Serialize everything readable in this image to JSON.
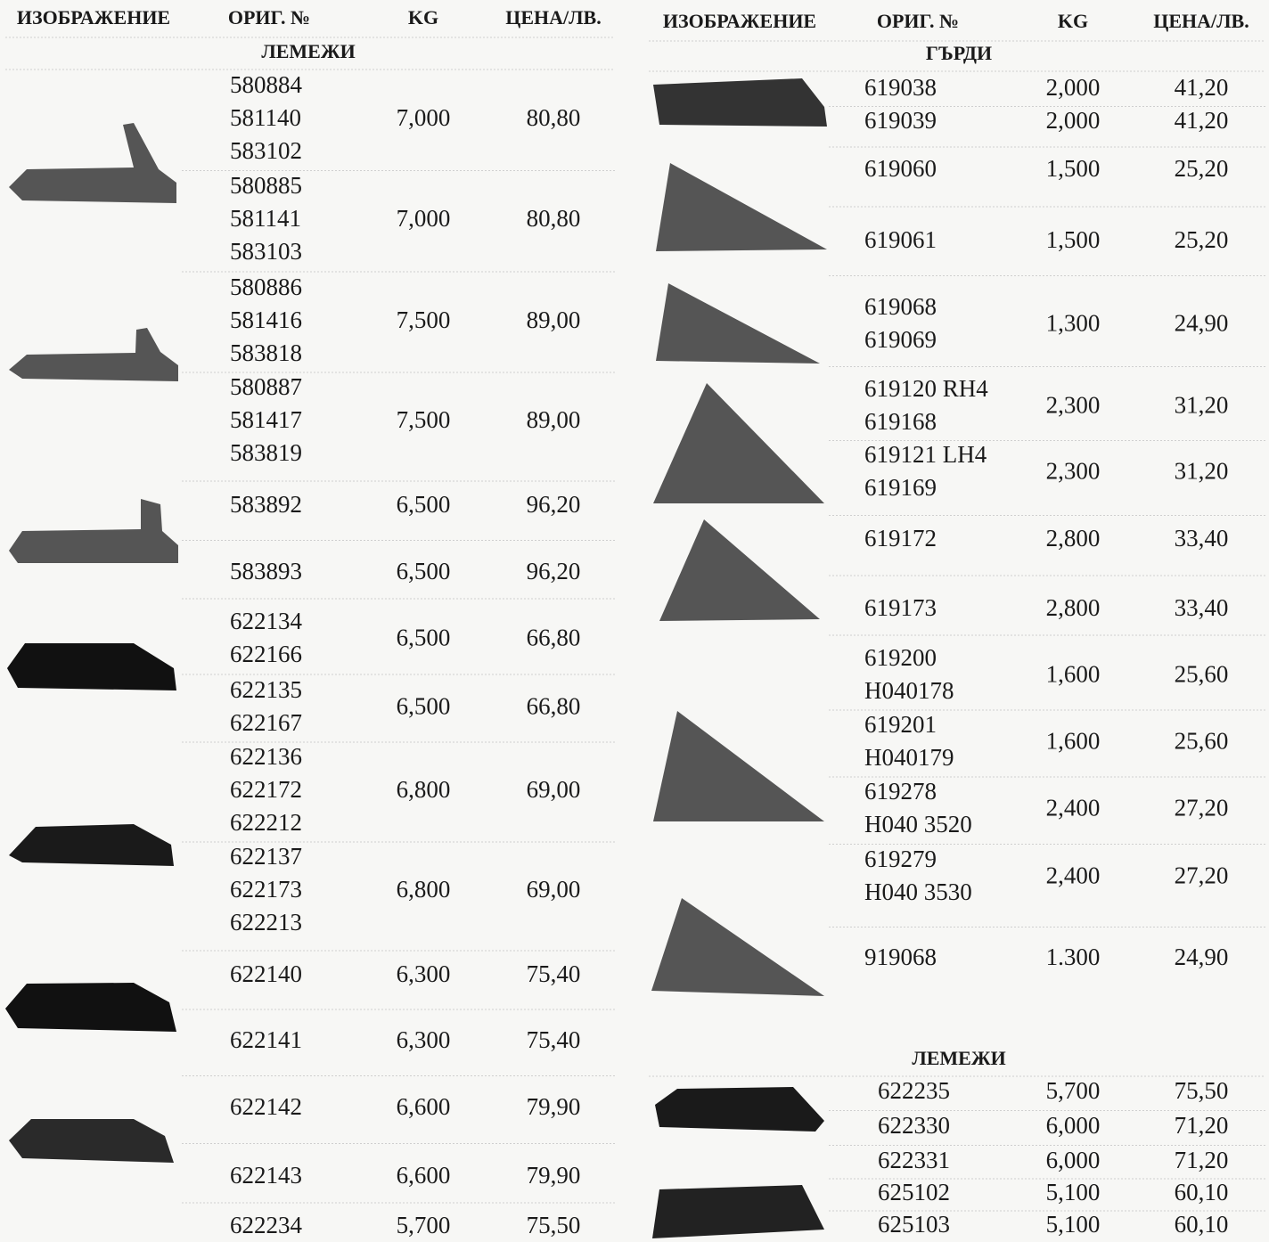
{
  "left": {
    "header": [
      "ИЗОБРАЖЕНИЕ",
      "ОРИГ. №",
      "KG",
      "ЦЕНА/ЛВ."
    ],
    "sections": [
      {
        "title": "ЛЕМЕЖИ",
        "rows": [
          {
            "codes": [
              "580884",
              "581140",
              "583102"
            ],
            "kg": "7,000",
            "price": "80,80"
          },
          {
            "codes": [
              "580885",
              "581141",
              "583103"
            ],
            "kg": "7,000",
            "price": "80,80"
          },
          {
            "codes": [
              "580886",
              "581416",
              "583818"
            ],
            "kg": "7,500",
            "price": "89,00"
          },
          {
            "codes": [
              "580887",
              "581417",
              "583819"
            ],
            "kg": "7,500",
            "price": "89,00"
          },
          {
            "codes": [
              "583892"
            ],
            "kg": "6,500",
            "price": "96,20"
          },
          {
            "codes": [
              "583893"
            ],
            "kg": "6,500",
            "price": "96,20"
          },
          {
            "codes": [
              "622134",
              "622166"
            ],
            "kg": "6,500",
            "price": "66,80"
          },
          {
            "codes": [
              "622135",
              "622167"
            ],
            "kg": "6,500",
            "price": "66,80"
          },
          {
            "codes": [
              "622136",
              "622172",
              "622212"
            ],
            "kg": "6,800",
            "price": "69,00"
          },
          {
            "codes": [
              "622137",
              "622173",
              "622213"
            ],
            "kg": "6,800",
            "price": "69,00"
          },
          {
            "codes": [
              "622140"
            ],
            "kg": "6,300",
            "price": "75,40"
          },
          {
            "codes": [
              "622141"
            ],
            "kg": "6,300",
            "price": "75,40"
          },
          {
            "codes": [
              "622142"
            ],
            "kg": "6,600",
            "price": "79,90"
          },
          {
            "codes": [
              "622143"
            ],
            "kg": "6,600",
            "price": "79,90"
          },
          {
            "codes": [
              "622234"
            ],
            "kg": "5,700",
            "price": "75,50"
          }
        ]
      }
    ]
  },
  "right": {
    "header": [
      "ИЗОБРАЖЕНИЕ",
      "ОРИГ. №",
      "KG",
      "ЦЕНА/ЛВ."
    ],
    "sections": [
      {
        "title": "ГЪРДИ",
        "rows": [
          {
            "codes": [
              "619038"
            ],
            "kg": "2,000",
            "price": "41,20"
          },
          {
            "codes": [
              "619039"
            ],
            "kg": "2,000",
            "price": "41,20"
          },
          {
            "codes": [
              "619060"
            ],
            "kg": "1,500",
            "price": "25,20"
          },
          {
            "codes": [
              "619061"
            ],
            "kg": "1,500",
            "price": "25,20"
          },
          {
            "codes": [
              "619068",
              "619069"
            ],
            "kg": "1,300",
            "price": "24,90"
          },
          {
            "codes": [
              "619120 RH4",
              "619168"
            ],
            "kg": "2,300",
            "price": "31,20"
          },
          {
            "codes": [
              "619121 LH4",
              "619169"
            ],
            "kg": "2,300",
            "price": "31,20"
          },
          {
            "codes": [
              "619172"
            ],
            "kg": "2,800",
            "price": "33,40"
          },
          {
            "codes": [
              "619173"
            ],
            "kg": "2,800",
            "price": "33,40"
          },
          {
            "codes": [
              "619200",
              "H040178"
            ],
            "kg": "1,600",
            "price": "25,60"
          },
          {
            "codes": [
              "619201",
              "H040179"
            ],
            "kg": "1,600",
            "price": "25,60"
          },
          {
            "codes": [
              "619278",
              "H040 3520"
            ],
            "kg": "2,400",
            "price": "27,20"
          },
          {
            "codes": [
              "619279",
              "H040 3530"
            ],
            "kg": "2,400",
            "price": "27,20"
          },
          {
            "codes": [
              "919068"
            ],
            "kg": "1.300",
            "price": "24,90"
          }
        ]
      },
      {
        "title": "ЛЕМЕЖИ",
        "rows": [
          {
            "codes": [
              "622235"
            ],
            "kg": "5,700",
            "price": "75,50"
          },
          {
            "codes": [
              "622330"
            ],
            "kg": "6,000",
            "price": "71,20"
          },
          {
            "codes": [
              "622331"
            ],
            "kg": "6,000",
            "price": "71,20"
          },
          {
            "codes": [
              "625102"
            ],
            "kg": "5,100",
            "price": "60,10"
          },
          {
            "codes": [
              "625103"
            ],
            "kg": "5,100",
            "price": "60,10"
          }
        ]
      }
    ]
  }
}
